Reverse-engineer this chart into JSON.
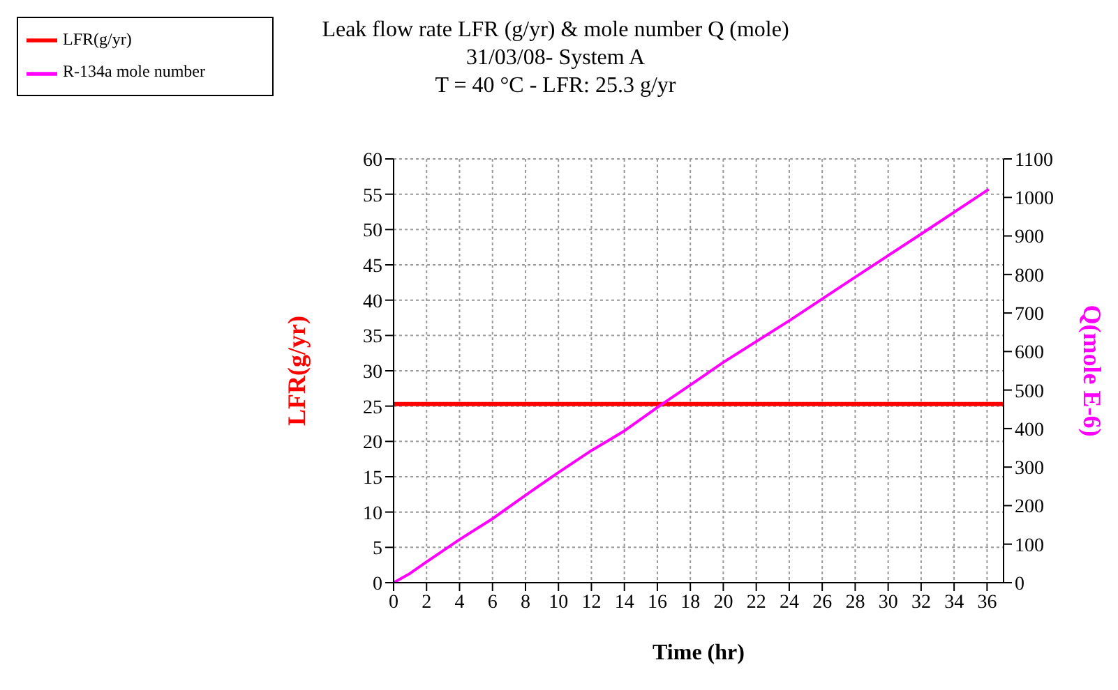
{
  "chart_data": {
    "type": "line",
    "title": "Leak flow rate LFR (g/yr) & mole number Q (mole)",
    "subtitle": "31/03/08- System A",
    "annotations": [
      "T = 40 °C - LFR: 25.3 g/yr"
    ],
    "xlabel": "Time (hr)",
    "ylabel": "LFR(g/yr)",
    "y2label": "Q(mole E-6)",
    "series": [
      {
        "name": "LFR(g/yr)",
        "color": "#ff0000",
        "x": [
          0,
          37
        ],
        "values": [
          25.3,
          25.3
        ]
      },
      {
        "name": "R-134a mole number",
        "color": "#ff00ff",
        "axis": "y2",
        "x": [
          0,
          1,
          2,
          4,
          6,
          8,
          10,
          12,
          14,
          16.1,
          18,
          20,
          24,
          28,
          32,
          36.1
        ],
        "values": [
          0,
          24,
          54,
          112,
          166,
          227,
          286,
          343,
          394,
          458,
          513,
          572,
          680,
          793,
          905,
          1021
        ]
      }
    ],
    "xlim": [
      0,
      37
    ],
    "xticks": [
      0,
      2,
      4,
      6,
      8,
      10,
      12,
      14,
      16,
      18,
      20,
      22,
      24,
      26,
      28,
      30,
      32,
      34,
      36
    ],
    "ylim": [
      0,
      60
    ],
    "yticks": [
      0,
      5,
      10,
      15,
      20,
      25,
      30,
      35,
      40,
      45,
      50,
      55,
      60
    ],
    "y2lim": [
      0,
      1100
    ],
    "y2ticks": [
      0,
      100,
      200,
      300,
      400,
      500,
      600,
      700,
      800,
      900,
      1000,
      1100
    ],
    "grid": true,
    "legend": "top left",
    "marker": "none",
    "line_style": "solid"
  }
}
